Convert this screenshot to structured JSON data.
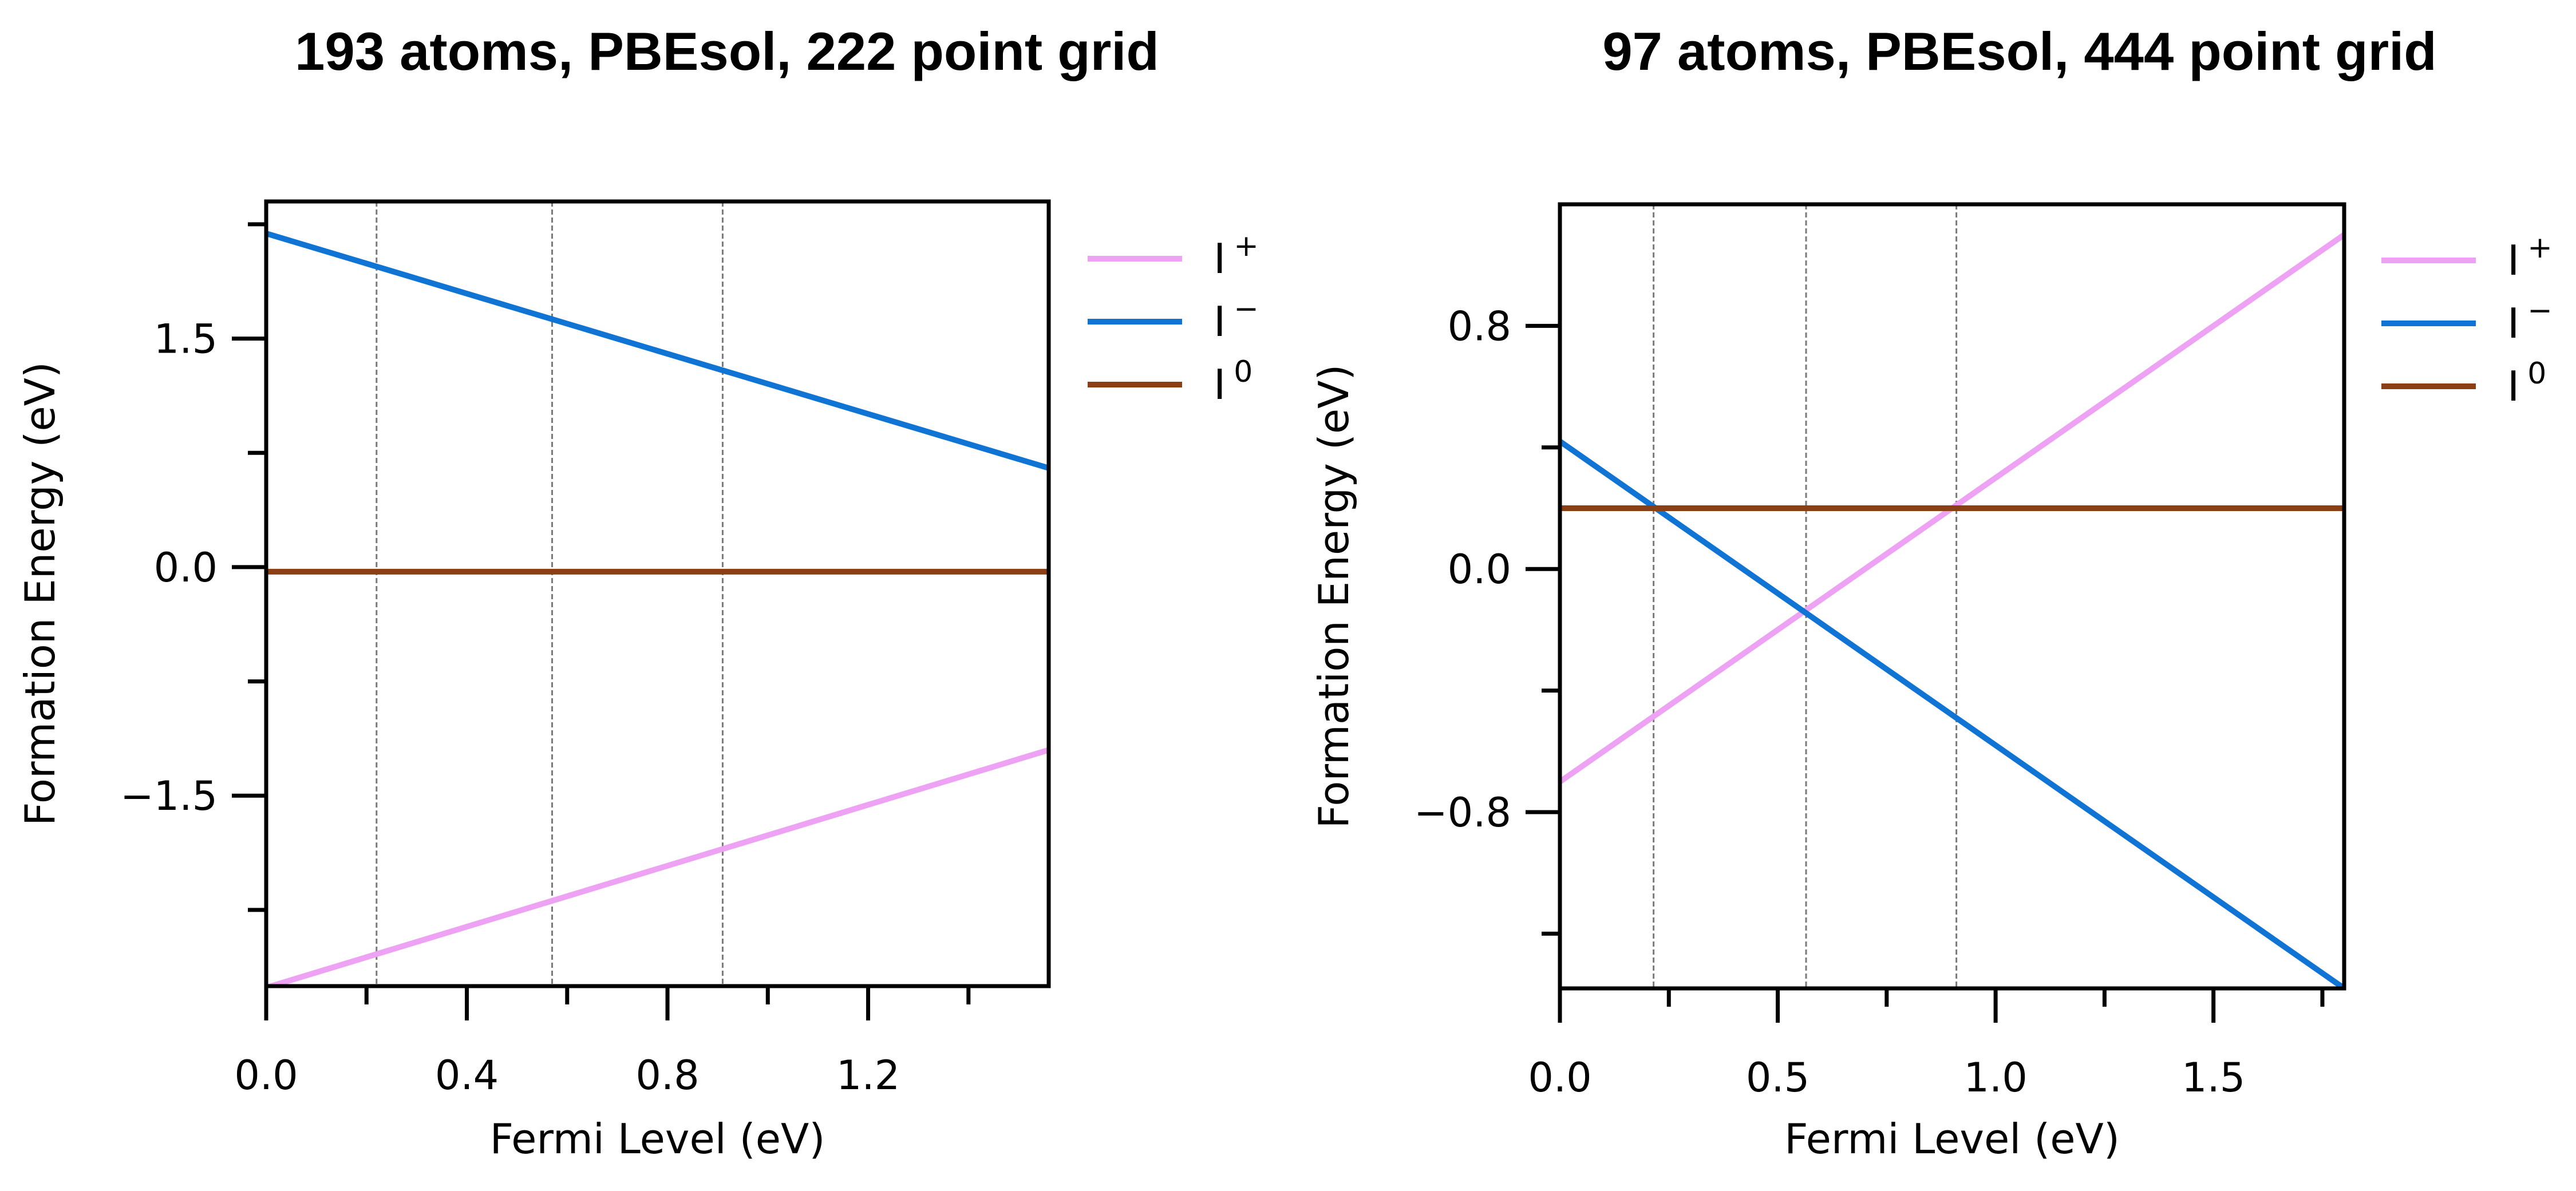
{
  "chart_data": [
    {
      "type": "line",
      "title": "193 atoms, PBEsol, 222 point grid",
      "xlabel": "Fermi Level (eV)",
      "ylabel": "Formation Energy (eV)",
      "xlim": [
        0.0,
        1.56
      ],
      "ylim": [
        -2.75,
        2.4
      ],
      "xticks": [
        0.0,
        0.4,
        0.8,
        1.2
      ],
      "xtick_labels": [
        "0.0",
        "0.4",
        "0.8",
        "1.2"
      ],
      "x_minor_ticks": [
        0.2,
        0.6,
        1.0,
        1.4
      ],
      "yticks": [
        -1.5,
        0.0,
        1.5
      ],
      "ytick_labels": [
        "−1.5",
        "0.0",
        "1.5"
      ],
      "y_minor_ticks": [
        -2.25,
        -0.75,
        0.75,
        2.25
      ],
      "vlines": [
        0.22,
        0.57,
        0.91
      ],
      "grid": false,
      "legend_position": "outside-right",
      "series": [
        {
          "name": "I",
          "superscript": "+",
          "color": "#EEA2F3",
          "x": [
            0.0,
            1.56
          ],
          "y": [
            -2.76,
            -1.2
          ]
        },
        {
          "name": "I",
          "superscript": "−",
          "color": "#0F74D4",
          "x": [
            0.0,
            1.56
          ],
          "y": [
            2.19,
            0.65
          ]
        },
        {
          "name": "I",
          "superscript": "0",
          "color": "#8B3F14",
          "x": [
            0.0,
            1.56
          ],
          "y": [
            -0.03,
            -0.03
          ]
        }
      ]
    },
    {
      "type": "line",
      "title": "97 atoms, PBEsol, 444 point grid",
      "xlabel": "Fermi Level (eV)",
      "ylabel": "Formation Energy (eV)",
      "xlim": [
        0.0,
        1.8
      ],
      "ylim": [
        -1.38,
        1.2
      ],
      "xticks": [
        0.0,
        0.5,
        1.0,
        1.5
      ],
      "xtick_labels": [
        "0.0",
        "0.5",
        "1.0",
        "1.5"
      ],
      "x_minor_ticks": [
        0.25,
        0.75,
        1.25,
        1.75
      ],
      "yticks": [
        -0.8,
        0.0,
        0.8
      ],
      "ytick_labels": [
        "−0.8",
        "0.0",
        "0.8"
      ],
      "y_minor_ticks": [
        -1.2,
        -0.4,
        0.4
      ],
      "vlines": [
        0.215,
        0.565,
        0.91
      ],
      "grid": false,
      "legend_position": "outside-right",
      "series": [
        {
          "name": "I",
          "superscript": "+",
          "color": "#EEA2F3",
          "x": [
            0.0,
            1.8
          ],
          "y": [
            -0.7,
            1.1
          ]
        },
        {
          "name": "I",
          "superscript": "−",
          "color": "#0F74D4",
          "x": [
            0.0,
            1.8
          ],
          "y": [
            0.42,
            -1.38
          ]
        },
        {
          "name": "I",
          "superscript": "0",
          "color": "#8B3F14",
          "x": [
            0.0,
            1.8
          ],
          "y": [
            0.2,
            0.2
          ]
        }
      ]
    }
  ]
}
